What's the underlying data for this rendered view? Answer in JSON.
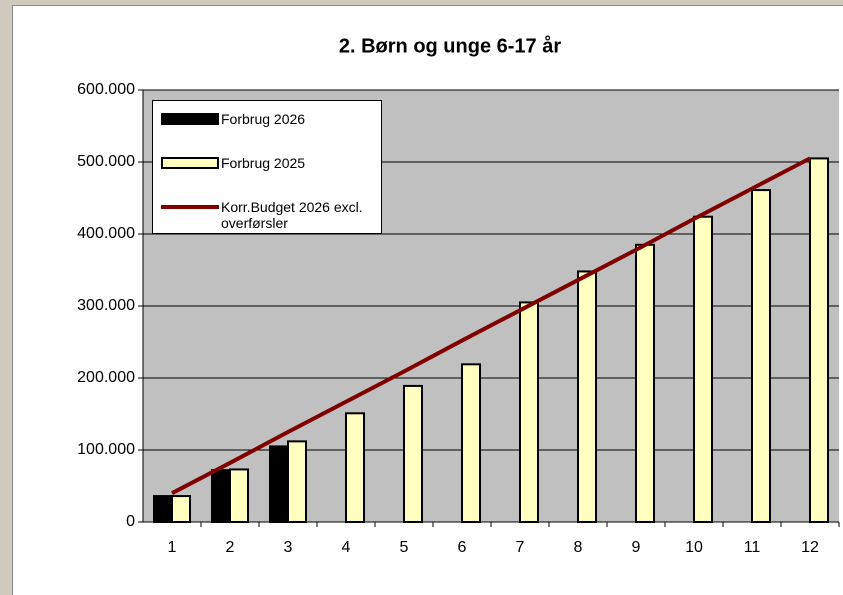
{
  "chart_data": {
    "type": "bar",
    "title": "2. Børn og unge 6-17 år",
    "categories": [
      "1",
      "2",
      "3",
      "4",
      "5",
      "6",
      "7",
      "8",
      "9",
      "10",
      "11",
      "12"
    ],
    "series": [
      {
        "name": "Forbrug 2026",
        "type": "bar",
        "color": "#000000",
        "values": [
          36000,
          72000,
          105000,
          null,
          null,
          null,
          null,
          null,
          null,
          null,
          null,
          null
        ]
      },
      {
        "name": "Forbrug 2025",
        "type": "bar",
        "color": "#ffffc0",
        "values": [
          36000,
          73000,
          112000,
          151000,
          189000,
          219000,
          305000,
          348000,
          385000,
          424000,
          461000,
          505000
        ]
      },
      {
        "name": "Korr.Budget 2026 excl. overførsler",
        "type": "line",
        "color": "#800000",
        "values": [
          40000,
          82000,
          125000,
          167000,
          209000,
          252000,
          294000,
          336000,
          378000,
          421000,
          463000,
          505000
        ]
      }
    ],
    "ylim": [
      0,
      600000
    ],
    "yticks": [
      0,
      {
        "value": 100000,
        "label": "100.000"
      },
      {
        "value": 200000,
        "label": "200.000"
      },
      {
        "value": 300000,
        "label": "300.000"
      },
      {
        "value": 400000,
        "label": "400.000"
      },
      {
        "value": 500000,
        "label": "500.000"
      },
      {
        "value": 600000,
        "label": "600.000"
      }
    ],
    "grid": true
  }
}
